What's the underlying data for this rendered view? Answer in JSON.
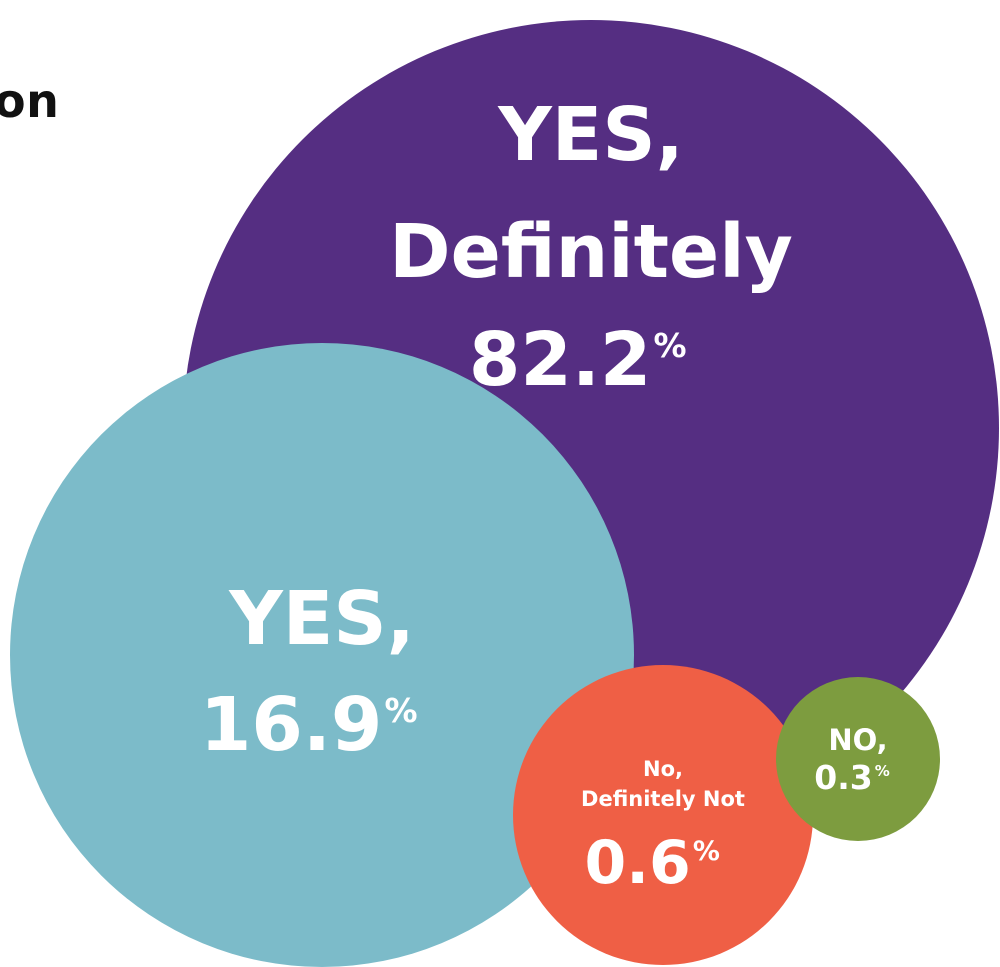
{
  "title_fragment": "on",
  "chart_data": {
    "type": "bubble",
    "unit": "%",
    "colors": {
      "yes_definitely": "#552e82",
      "yes": "#7cbbc9",
      "no_definitely_not": "#ef5f45",
      "no": "#7d9c3f"
    },
    "bubbles": [
      {
        "key": "yes_definitely",
        "label_lines": [
          "YES,",
          "Definitely"
        ],
        "value": 82.2,
        "value_text": "82.2",
        "pct": "%"
      },
      {
        "key": "yes",
        "label_lines": [
          "YES,"
        ],
        "value": 16.9,
        "value_text": "16.9",
        "pct": "%"
      },
      {
        "key": "no_definitely_not",
        "label_lines": [
          "No,",
          "Definitely Not"
        ],
        "value": 0.6,
        "value_text": "0.6",
        "pct": "%"
      },
      {
        "key": "no",
        "label_lines": [
          "NO,"
        ],
        "value": 0.3,
        "value_text": "0.3",
        "pct": "%"
      }
    ]
  }
}
